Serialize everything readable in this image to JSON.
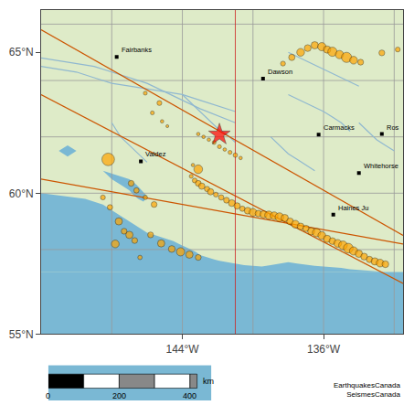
{
  "chart_data": {
    "type": "scatter",
    "color": "#7ab8d4",
    "xlim": [
      -152,
      -131.5
    ],
    "ylim": [
      55,
      66.5
    ],
    "xticks": [
      {
        "value": -144,
        "label": "144°W"
      },
      {
        "value": -136,
        "label": "136°W"
      }
    ],
    "yticks": [
      {
        "value": 55,
        "label": "55°N"
      },
      {
        "value": 60,
        "label": "60°N"
      },
      {
        "value": 65,
        "label": "65°N"
      }
    ],
    "series": [
      {
        "type": "area",
        "color": "#deebc8",
        "x": [
          -152,
          -131.5,
          -131.5,
          -152
        ],
        "y": [
          57.2,
          57.2,
          66.5,
          66.5
        ]
      },
      {
        "type": "area",
        "color": "#7ab8d4",
        "x": [
          -152,
          -149.5,
          -148.5,
          -148.0,
          -147.5,
          -147.0,
          -146.5,
          -146.0,
          -145.5,
          -145.0,
          -144.5,
          -144.2,
          -143.8,
          -143.5,
          -143.2,
          -143.0,
          -142.7,
          -142.5,
          -142.2,
          -141.9,
          -141.5,
          -141.0,
          -140.5,
          -140.0,
          -139.5,
          -139.0,
          -138.5,
          -138.0,
          -137.5,
          -137.0,
          -136.5,
          -136.0,
          -135.5,
          -135.0,
          -134.5,
          -134.0,
          -133.5,
          -133.0,
          -132.5,
          -131.5,
          -131.5,
          -152
        ],
        "y": [
          60.0,
          59.8,
          59.6,
          59.4,
          59.2,
          59.0,
          58.8,
          58.6,
          58.5,
          58.4,
          58.3,
          58.2,
          58.1,
          58.0,
          57.9,
          57.8,
          57.75,
          57.7,
          57.65,
          57.6,
          57.55,
          57.5,
          57.45,
          57.42,
          57.4,
          57.45,
          57.5,
          57.55,
          57.5,
          57.45,
          57.42,
          57.4,
          57.38,
          57.35,
          57.3,
          57.28,
          57.25,
          57.22,
          57.2,
          57.2,
          57.2,
          57.2
        ]
      },
      {
        "type": "area",
        "color": "#7ab8d4",
        "x": [
          -148.5,
          -148.0,
          -147.5,
          -147.0,
          -146.8,
          -146.5,
          -146.2,
          -146.0,
          -146.3,
          -146.6,
          -147.0,
          -147.5,
          -148.0,
          -148.5
        ],
        "y": [
          60.8,
          60.5,
          60.3,
          60.1,
          59.95,
          59.8,
          59.7,
          59.9,
          60.1,
          60.3,
          60.5,
          60.6,
          60.7,
          60.8
        ]
      },
      {
        "type": "area",
        "color": "#7ab8d4",
        "x": [
          -151.0,
          -150.5,
          -150.0,
          -150.5,
          -151.0
        ],
        "y": [
          61.5,
          61.3,
          61.5,
          61.7,
          61.5
        ]
      },
      {
        "type": "vline",
        "color": "#999999",
        "x": [
          -148,
          -144,
          -140,
          -136,
          -132
        ]
      },
      {
        "type": "hline",
        "color": "#999999",
        "y": [
          58,
          60,
          62,
          64,
          66
        ]
      },
      {
        "type": "line",
        "color": "#90b8d0",
        "x": [
          -152,
          -150,
          -149,
          -148,
          -147,
          -146,
          -145,
          -144,
          -143,
          -142,
          -141
        ],
        "y": [
          64.5,
          64.3,
          64.1,
          63.9,
          63.8,
          63.7,
          63.6,
          63.5,
          63.3,
          63.1,
          62.9
        ]
      },
      {
        "type": "line",
        "color": "#90b8d0",
        "x": [
          -152,
          -151,
          -150,
          -149,
          -148,
          -147,
          -146,
          -145,
          -144,
          -143,
          -141
        ],
        "y": [
          64.8,
          64.7,
          64.6,
          64.5,
          64.3,
          64.1,
          63.9,
          63.6,
          63.3,
          63.0,
          62.5
        ]
      },
      {
        "type": "line",
        "color": "#90b8d0",
        "x": [
          -144,
          -143.5,
          -143,
          -142.5,
          -142,
          -141.5,
          -141
        ],
        "y": [
          63.5,
          63.2,
          62.9,
          62.6,
          62.3,
          62.1,
          61.8
        ]
      },
      {
        "type": "line",
        "color": "#90b8d0",
        "x": [
          -139,
          -138.5,
          -138,
          -137.5,
          -137,
          -136.5
        ],
        "y": [
          62.0,
          61.7,
          61.4,
          61.2,
          61.0,
          60.8
        ]
      },
      {
        "type": "line",
        "color": "#90b8d0",
        "x": [
          -138,
          -137,
          -136,
          -135,
          -134
        ],
        "y": [
          65.0,
          64.7,
          64.4,
          64.1,
          63.8
        ]
      },
      {
        "type": "line",
        "color": "#90b8d0",
        "x": [
          -148,
          -147.5,
          -147,
          -146.5,
          -146
        ],
        "y": [
          62.5,
          62.0,
          61.7,
          61.4,
          61.1
        ]
      },
      {
        "type": "line",
        "color": "#90b8d0",
        "x": [
          -138,
          -137,
          -136,
          -135.5,
          -135,
          -134.5
        ],
        "y": [
          63.5,
          63.2,
          62.9,
          62.7,
          62.5,
          62.2
        ]
      },
      {
        "type": "line",
        "color": "#90b8d0",
        "x": [
          -134,
          -133.5,
          -133,
          -132.5,
          -132
        ],
        "y": [
          62.5,
          62.2,
          61.9,
          61.7,
          61.5
        ]
      },
      {
        "type": "line",
        "color": "#cc5500",
        "x": [
          -152,
          -131.5
        ],
        "y": [
          65.8,
          58.5
        ]
      },
      {
        "type": "line",
        "color": "#cc5500",
        "x": [
          -152,
          -131.5
        ],
        "y": [
          63.5,
          56.8
        ]
      },
      {
        "type": "line",
        "color": "#cc5500",
        "x": [
          -152,
          -131.5
        ],
        "y": [
          60.5,
          58.2
        ]
      },
      {
        "type": "vline",
        "color": "#cc2222",
        "x": [
          -141.0
        ]
      },
      {
        "type": "scatter",
        "marker": "circle",
        "color": "#FFA500",
        "x": [
          -146.1,
          -145.3,
          -145.7,
          -145.15,
          -144.85,
          -143.1,
          -142.8,
          -142.5,
          -142.2,
          -141.9,
          -141.6,
          -141.3,
          -141.0,
          -140.7,
          -143.4,
          -143.1,
          -143.5,
          -143.3,
          -143.1,
          -142.9,
          -142.6,
          -142.4,
          -142.1,
          -141.8,
          -141.5,
          -141.2,
          -140.9,
          -140.6,
          -140.3,
          -140.0,
          -139.7,
          -139.4,
          -139.1,
          -138.8,
          -138.5,
          -138.2,
          -137.9,
          -137.6,
          -137.3,
          -137.0,
          -136.7,
          -136.4,
          -136.1,
          -135.8,
          -135.5,
          -135.2,
          -134.9,
          -134.6,
          -134.3,
          -134.0,
          -133.7,
          -133.4,
          -133.1,
          -132.8,
          -132.5,
          -148.2,
          -146.9,
          -146.6,
          -146.1,
          -145.6,
          -148.1,
          -147.6,
          -147.3,
          -147.0,
          -146.7,
          -145.8,
          -145.2,
          -144.6,
          -144.1,
          -143.6,
          -143.1,
          -148.5,
          -147.8,
          -146.4,
          -138.3,
          -137.8,
          -137.3,
          -136.9,
          -136.5,
          -136.1,
          -135.8,
          -135.5,
          -135.1,
          -134.7,
          -134.3,
          -133.9,
          -132.7,
          -131.8
        ],
        "y": [
          63.55,
          63.2,
          62.85,
          62.55,
          62.38,
          62.1,
          62.0,
          61.9,
          61.8,
          61.65,
          61.55,
          61.45,
          61.35,
          61.25,
          61.0,
          60.85,
          60.6,
          60.45,
          60.35,
          60.25,
          60.15,
          60.05,
          59.95,
          59.85,
          59.75,
          59.65,
          59.55,
          59.45,
          59.38,
          59.32,
          59.28,
          59.25,
          59.22,
          59.2,
          59.15,
          59.12,
          59.0,
          58.9,
          58.82,
          58.75,
          58.65,
          58.6,
          58.5,
          58.38,
          58.3,
          58.22,
          58.15,
          58.05,
          57.95,
          57.85,
          57.75,
          57.65,
          57.58,
          57.52,
          57.48,
          61.2,
          60.35,
          60.1,
          59.85,
          59.6,
          59.5,
          59.0,
          58.65,
          58.52,
          58.32,
          58.52,
          58.22,
          58.02,
          57.92,
          57.82,
          57.72,
          59.85,
          58.2,
          57.72,
          64.6,
          64.82,
          65.0,
          65.15,
          65.25,
          65.2,
          65.1,
          65.02,
          64.92,
          64.82,
          64.72,
          64.65,
          64.98,
          65.1
        ],
        "r": [
          8,
          10,
          8,
          7,
          6,
          7,
          7,
          7,
          8,
          8,
          7,
          8,
          9,
          7,
          7,
          18,
          8,
          10,
          12,
          13,
          11,
          13,
          10,
          11,
          12,
          14,
          13,
          11,
          14,
          16,
          13,
          15,
          17,
          16,
          18,
          15,
          14,
          16,
          14,
          13,
          15,
          17,
          16,
          15,
          14,
          16,
          18,
          20,
          17,
          15,
          14,
          13,
          15,
          16,
          14,
          26,
          12,
          11,
          9,
          12,
          11,
          15,
          12,
          15,
          12,
          12,
          15,
          14,
          17,
          15,
          12,
          10,
          16,
          9,
          10,
          13,
          16,
          14,
          15,
          17,
          15,
          19,
          17,
          21,
          16,
          12,
          12,
          10
        ]
      },
      {
        "type": "scatter",
        "marker": "star",
        "color": "red",
        "x": [
          -141.9
        ],
        "y": [
          62.08
        ],
        "size": [
          180
        ]
      },
      {
        "type": "scatter",
        "marker": "square",
        "color": "black",
        "x": [
          -147.72,
          -139.43,
          -136.28,
          -132.7,
          -146.35,
          -135.45,
          -134.0
        ],
        "y": [
          64.84,
          64.07,
          62.08,
          62.1,
          61.13,
          59.24,
          60.72
        ],
        "labels": [
          "Fairbanks",
          "Dawson",
          "Carmacks",
          "Ros",
          "Valdez",
          "Haines Ju",
          "Whitehorse"
        ]
      }
    ],
    "scale_bar": {
      "xlim": [
        0,
        460
      ],
      "segments": [
        {
          "from": 0,
          "to": 100,
          "color": "black"
        },
        {
          "from": 100,
          "to": 200,
          "color": "white"
        },
        {
          "from": 200,
          "to": 300,
          "color": "#888888"
        },
        {
          "from": 300,
          "to": 400,
          "color": "white"
        },
        {
          "from": 400,
          "to": 420,
          "color": "#888888"
        }
      ],
      "ticks": [
        0,
        200,
        400
      ],
      "unit": "km"
    },
    "annotations": [
      {
        "text": "EarthquakesCanada\nSeismesCanada"
      }
    ]
  }
}
